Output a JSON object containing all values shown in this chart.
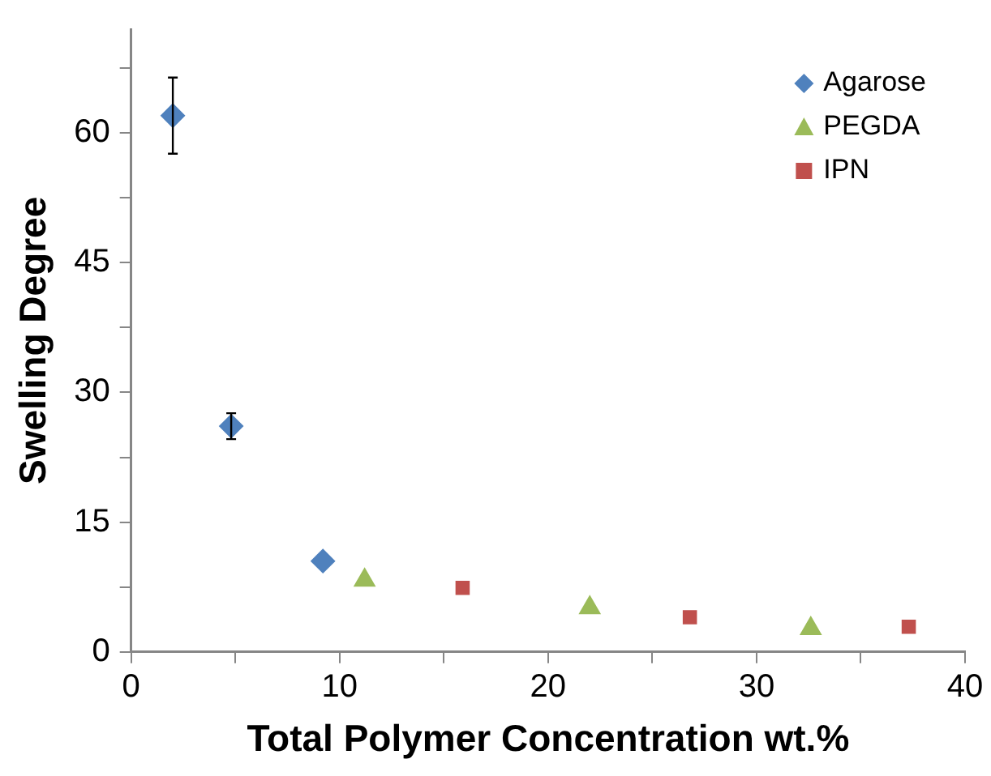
{
  "chart_data": {
    "type": "scatter",
    "xlabel": "Total Polymer Concentration wt.%",
    "ylabel": "Swelling Degree",
    "xlim": [
      0,
      40
    ],
    "xticks": [
      0,
      {
        "value": 5,
        "label": null
      },
      10,
      {
        "value": 15,
        "label": null
      },
      20,
      {
        "value": 25,
        "label": null
      },
      30,
      {
        "value": 35,
        "label": null
      },
      40
    ],
    "ylim": [
      0,
      72
    ],
    "yticks": [
      0,
      {
        "value": 7.5,
        "label": null
      },
      15,
      {
        "value": 22.5,
        "label": null
      },
      30,
      {
        "value": 37.5,
        "label": null
      },
      45,
      {
        "value": 52.5,
        "label": null
      },
      60,
      {
        "value": 67.5,
        "label": null
      }
    ],
    "grid": false,
    "legend": "top right",
    "series": [
      {
        "name": "Agarose",
        "color": "#4f81bd",
        "marker": "diamond",
        "x": [
          2,
          4.8,
          9.2
        ],
        "values": [
          62,
          26.1,
          10.5
        ],
        "errors": [
          4.4,
          1.5,
          null
        ]
      },
      {
        "name": "PEGDA",
        "color": "#9bbb59",
        "marker": "triangle",
        "x": [
          11.2,
          22,
          32.6
        ],
        "values": [
          8.3,
          5.1,
          2.7
        ]
      },
      {
        "name": "IPN",
        "color": "#c0504d",
        "marker": "square",
        "x": [
          15.9,
          26.8,
          37.3
        ],
        "values": [
          7.4,
          4,
          2.9
        ]
      }
    ]
  }
}
